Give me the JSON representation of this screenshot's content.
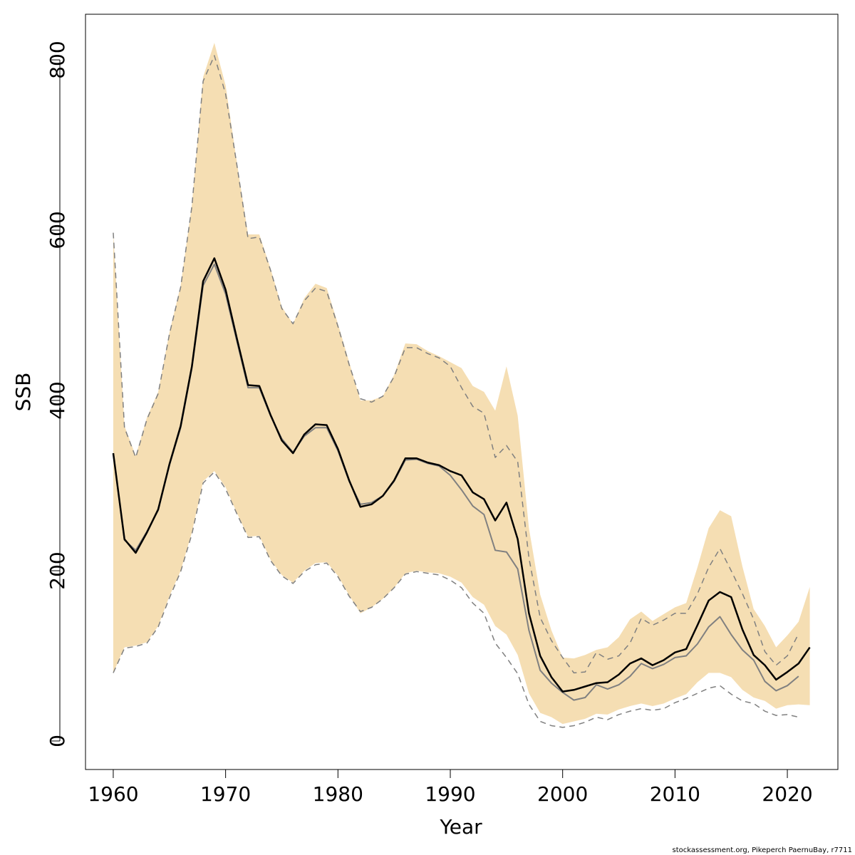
{
  "chart_data": {
    "type": "line",
    "xlabel": "Year",
    "ylabel": "SSB",
    "footer": "stockassessment.org, Pikeperch PaernuBay, r7711",
    "x": [
      1960,
      1961,
      1962,
      1963,
      1964,
      1965,
      1966,
      1967,
      1968,
      1969,
      1970,
      1971,
      1972,
      1973,
      1974,
      1975,
      1976,
      1977,
      1978,
      1979,
      1980,
      1981,
      1982,
      1983,
      1984,
      1985,
      1986,
      1987,
      1988,
      1989,
      1990,
      1991,
      1992,
      1993,
      1994,
      1995,
      1996,
      1997,
      1998,
      1999,
      2000,
      2001,
      2002,
      2003,
      2004,
      2005,
      2006,
      2007,
      2008,
      2009,
      2010,
      2011,
      2012,
      2013,
      2014,
      2015,
      2016,
      2017,
      2018,
      2019,
      2020,
      2021,
      2022
    ],
    "band": {
      "color": "#f5deb3",
      "upper": [
        597,
        370,
        335,
        380,
        410,
        480,
        535,
        630,
        780,
        820,
        770,
        680,
        595,
        595,
        555,
        510,
        490,
        520,
        537,
        532,
        490,
        445,
        400,
        400,
        405,
        430,
        467,
        466,
        458,
        452,
        445,
        438,
        417,
        410,
        388,
        440,
        382,
        250,
        172,
        130,
        98,
        97,
        101,
        107,
        110,
        122,
        143,
        152,
        141,
        149,
        157,
        162,
        204,
        250,
        271,
        264,
        205,
        155,
        135,
        110,
        124,
        140,
        181
      ],
      "lower": [
        80,
        110,
        112,
        116,
        135,
        170,
        200,
        245,
        305,
        317,
        298,
        268,
        240,
        241,
        213,
        195,
        186,
        200,
        209,
        210,
        194,
        171,
        150,
        157,
        167,
        180,
        197,
        200,
        198,
        197,
        193,
        186,
        169,
        160,
        135,
        125,
        101,
        56,
        33,
        28,
        20,
        23,
        26,
        32,
        31,
        37,
        41,
        44,
        41,
        44,
        50,
        55,
        69,
        80,
        80,
        75,
        60,
        51,
        47,
        38,
        42,
        43,
        42
      ]
    },
    "series": [
      {
        "color": "#808080",
        "dash": "dashed",
        "width": 1.5,
        "values": [
          597,
          368,
          333,
          378,
          408,
          478,
          533,
          628,
          775,
          805,
          760,
          677,
          590,
          592,
          553,
          508,
          490,
          517,
          532,
          528,
          487,
          442,
          402,
          398,
          405,
          428,
          462,
          462,
          455,
          450,
          440,
          415,
          393,
          385,
          333,
          347,
          328,
          215,
          145,
          118,
          98,
          80,
          81,
          104,
          96,
          100,
          115,
          144,
          136,
          142,
          150,
          150,
          173,
          204,
          226,
          200,
          173,
          143,
          105,
          89,
          100,
          126,
          null
        ]
      },
      {
        "color": "#808080",
        "dash": "dashed",
        "width": 1.5,
        "values": [
          80,
          109,
          111,
          115,
          134,
          168,
          199,
          243,
          303,
          316,
          296,
          267,
          239,
          240,
          212,
          194,
          185,
          199,
          207,
          209,
          193,
          170,
          152,
          157,
          167,
          180,
          196,
          199,
          197,
          195,
          189,
          180,
          162,
          150,
          115,
          98,
          79,
          43,
          23,
          18,
          16,
          18,
          22,
          28,
          25,
          31,
          35,
          38,
          36,
          38,
          45,
          50,
          56,
          62,
          65,
          55,
          47,
          44,
          35,
          30,
          31,
          28,
          null
        ]
      },
      {
        "color": "#808080",
        "dash": "solid",
        "width": 2,
        "values": [
          338,
          236,
          224,
          246,
          271,
          324,
          368,
          438,
          535,
          560,
          525,
          470,
          415,
          415,
          382,
          355,
          339,
          358,
          368,
          368,
          341,
          305,
          278,
          280,
          288,
          305,
          330,
          331,
          326,
          323,
          312,
          295,
          276,
          266,
          224,
          222,
          202,
          130,
          83,
          68,
          57,
          48,
          51,
          66,
          61,
          66,
          76,
          91,
          85,
          90,
          98,
          100,
          114,
          134,
          146,
          125,
          107,
          95,
          70,
          59,
          65,
          76,
          null
        ]
      },
      {
        "color": "#000000",
        "dash": "solid",
        "width": 2.5,
        "values": [
          338,
          237,
          221,
          245,
          272,
          325,
          370,
          440,
          540,
          567,
          530,
          473,
          418,
          417,
          383,
          353,
          338,
          360,
          372,
          371,
          343,
          306,
          275,
          278,
          288,
          306,
          332,
          332,
          327,
          324,
          317,
          312,
          292,
          284,
          259,
          280,
          237,
          150,
          100,
          75,
          58,
          60,
          64,
          68,
          69,
          78,
          91,
          97,
          89,
          95,
          104,
          108,
          136,
          165,
          175,
          169,
          131,
          101,
          89,
          72,
          81,
          91,
          110
        ]
      }
    ],
    "xlim": [
      1957.53,
      2024.5
    ],
    "ylim": [
      -33.5,
      853.6
    ],
    "xticks": [
      1960,
      1970,
      1980,
      1990,
      2000,
      2010,
      2020
    ],
    "yticks": [
      0,
      200,
      400,
      600,
      800
    ]
  }
}
